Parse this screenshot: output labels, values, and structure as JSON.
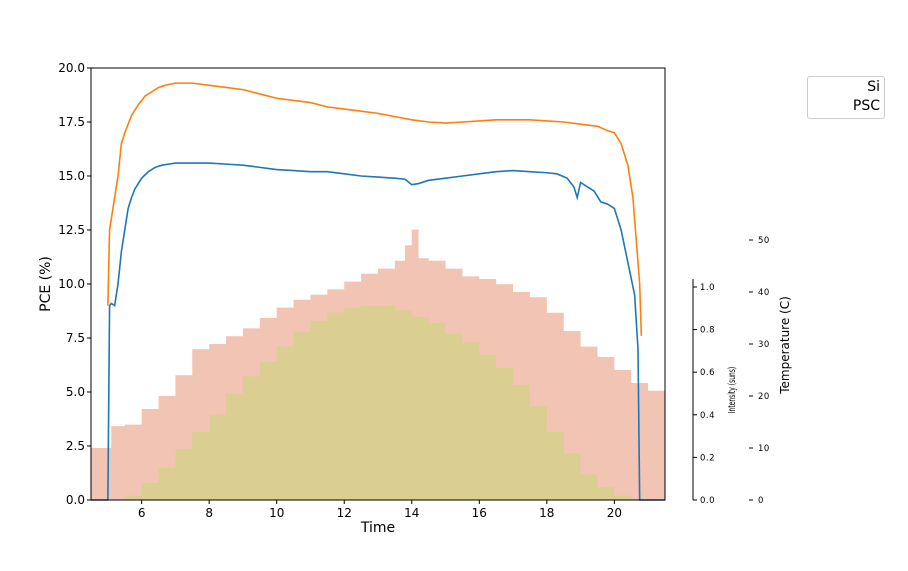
{
  "chart_data": {
    "type": "line",
    "xlabel": "Time",
    "ylabel": "PCE (%)",
    "xlim": [
      4.5,
      21.5
    ],
    "ylim": [
      0,
      20
    ],
    "x_ticks": [
      "6",
      "8",
      "10",
      "12",
      "14",
      "16",
      "18",
      "20"
    ],
    "y_ticks": [
      "0.0",
      "2.5",
      "5.0",
      "7.5",
      "10.0",
      "12.5",
      "15.0",
      "17.5",
      "20.0"
    ],
    "legend": {
      "placement": "upper-right-outside",
      "entries": [
        "Si",
        "PSC"
      ]
    },
    "series": [
      {
        "name": "Si",
        "color": "#1f77b4",
        "x": [
          4.5,
          5.0,
          5.05,
          5.1,
          5.2,
          5.3,
          5.4,
          5.5,
          5.6,
          5.7,
          5.8,
          6.0,
          6.2,
          6.4,
          6.6,
          6.8,
          7.0,
          7.5,
          8.0,
          8.5,
          9.0,
          9.5,
          10.0,
          10.5,
          11.0,
          11.5,
          12.0,
          12.5,
          13.0,
          13.5,
          13.8,
          14.0,
          14.2,
          14.5,
          15.0,
          15.5,
          16.0,
          16.5,
          17.0,
          17.5,
          18.0,
          18.3,
          18.6,
          18.8,
          18.9,
          19.0,
          19.2,
          19.4,
          19.6,
          19.8,
          20.0,
          20.2,
          20.4,
          20.6,
          20.7,
          20.75,
          21.5
        ],
        "y": [
          0.0,
          0.0,
          9.0,
          9.1,
          9.0,
          10.0,
          11.5,
          12.5,
          13.5,
          14.0,
          14.4,
          14.9,
          15.2,
          15.4,
          15.5,
          15.55,
          15.6,
          15.6,
          15.6,
          15.55,
          15.5,
          15.4,
          15.3,
          15.25,
          15.2,
          15.2,
          15.1,
          15.0,
          14.95,
          14.9,
          14.85,
          14.6,
          14.65,
          14.8,
          14.9,
          15.0,
          15.1,
          15.2,
          15.25,
          15.2,
          15.15,
          15.1,
          14.9,
          14.5,
          14.0,
          14.7,
          14.5,
          14.3,
          13.8,
          13.7,
          13.5,
          12.5,
          11.0,
          9.5,
          7.0,
          0.0,
          0.0
        ]
      },
      {
        "name": "PSC",
        "color": "#ff7f0e",
        "x": [
          5.0,
          5.05,
          5.15,
          5.3,
          5.4,
          5.5,
          5.7,
          5.9,
          6.1,
          6.3,
          6.5,
          6.7,
          7.0,
          7.5,
          8.0,
          8.5,
          9.0,
          9.5,
          10.0,
          10.5,
          11.0,
          11.5,
          12.0,
          12.5,
          13.0,
          13.5,
          14.0,
          14.5,
          15.0,
          15.5,
          16.0,
          16.5,
          17.0,
          17.5,
          18.0,
          18.5,
          19.0,
          19.5,
          19.8,
          20.0,
          20.2,
          20.4,
          20.55,
          20.65,
          20.75,
          20.8
        ],
        "y": [
          9.0,
          12.5,
          13.5,
          15.0,
          16.5,
          17.0,
          17.8,
          18.3,
          18.7,
          18.9,
          19.1,
          19.2,
          19.3,
          19.3,
          19.2,
          19.1,
          19.0,
          18.8,
          18.6,
          18.5,
          18.4,
          18.2,
          18.1,
          18.0,
          17.9,
          17.75,
          17.6,
          17.5,
          17.45,
          17.5,
          17.55,
          17.6,
          17.6,
          17.6,
          17.55,
          17.5,
          17.4,
          17.3,
          17.1,
          17.0,
          16.5,
          15.5,
          14.0,
          12.0,
          10.0,
          7.6
        ]
      }
    ],
    "secondary_axes": [
      {
        "label": "Intensity (suns)",
        "ylim": [
          0,
          1.0
        ],
        "ticks": [
          "0.0",
          "0.2",
          "0.4",
          "0.6",
          "0.8",
          "1.0"
        ],
        "area": {
          "color": "#cdd57a",
          "x": [
            4.5,
            5.3,
            5.5,
            6.0,
            6.5,
            7.0,
            7.5,
            8.0,
            8.5,
            9.0,
            9.5,
            10.0,
            10.5,
            11.0,
            11.5,
            12.0,
            12.5,
            13.0,
            13.5,
            14.0,
            14.5,
            15.0,
            15.5,
            16.0,
            16.5,
            17.0,
            17.5,
            18.0,
            18.5,
            19.0,
            19.5,
            20.0,
            20.5,
            21.5
          ],
          "y": [
            0.0,
            0.0,
            0.02,
            0.08,
            0.15,
            0.24,
            0.32,
            0.4,
            0.5,
            0.58,
            0.65,
            0.72,
            0.79,
            0.84,
            0.88,
            0.9,
            0.91,
            0.91,
            0.89,
            0.86,
            0.83,
            0.78,
            0.74,
            0.68,
            0.62,
            0.54,
            0.44,
            0.32,
            0.22,
            0.12,
            0.06,
            0.02,
            0.0,
            0.0
          ]
        }
      },
      {
        "label": "Temperature (C)",
        "ylim": [
          0,
          50
        ],
        "ticks": [
          "0",
          "10",
          "20",
          "30",
          "40",
          "50"
        ],
        "area": {
          "color": "#e79c80",
          "x": [
            4.5,
            5.0,
            5.1,
            5.5,
            6.0,
            6.5,
            7.0,
            7.5,
            8.0,
            8.5,
            9.0,
            9.5,
            10.0,
            10.5,
            11.0,
            11.5,
            12.0,
            12.5,
            13.0,
            13.5,
            13.8,
            14.0,
            14.2,
            14.5,
            15.0,
            15.5,
            16.0,
            16.5,
            17.0,
            17.5,
            18.0,
            18.5,
            19.0,
            19.5,
            20.0,
            20.5,
            21.0,
            21.5
          ],
          "y": [
            10.0,
            10.0,
            14.2,
            14.5,
            17.5,
            20.0,
            24.0,
            29.0,
            30.0,
            31.5,
            33.0,
            35.0,
            37.0,
            38.5,
            39.5,
            40.5,
            42.0,
            43.5,
            44.5,
            46.0,
            49.0,
            52.0,
            46.5,
            46.0,
            44.5,
            43.0,
            42.5,
            41.5,
            40.0,
            39.0,
            36.0,
            32.5,
            29.5,
            27.5,
            25.0,
            22.5,
            21.0,
            20.5
          ]
        }
      }
    ]
  }
}
